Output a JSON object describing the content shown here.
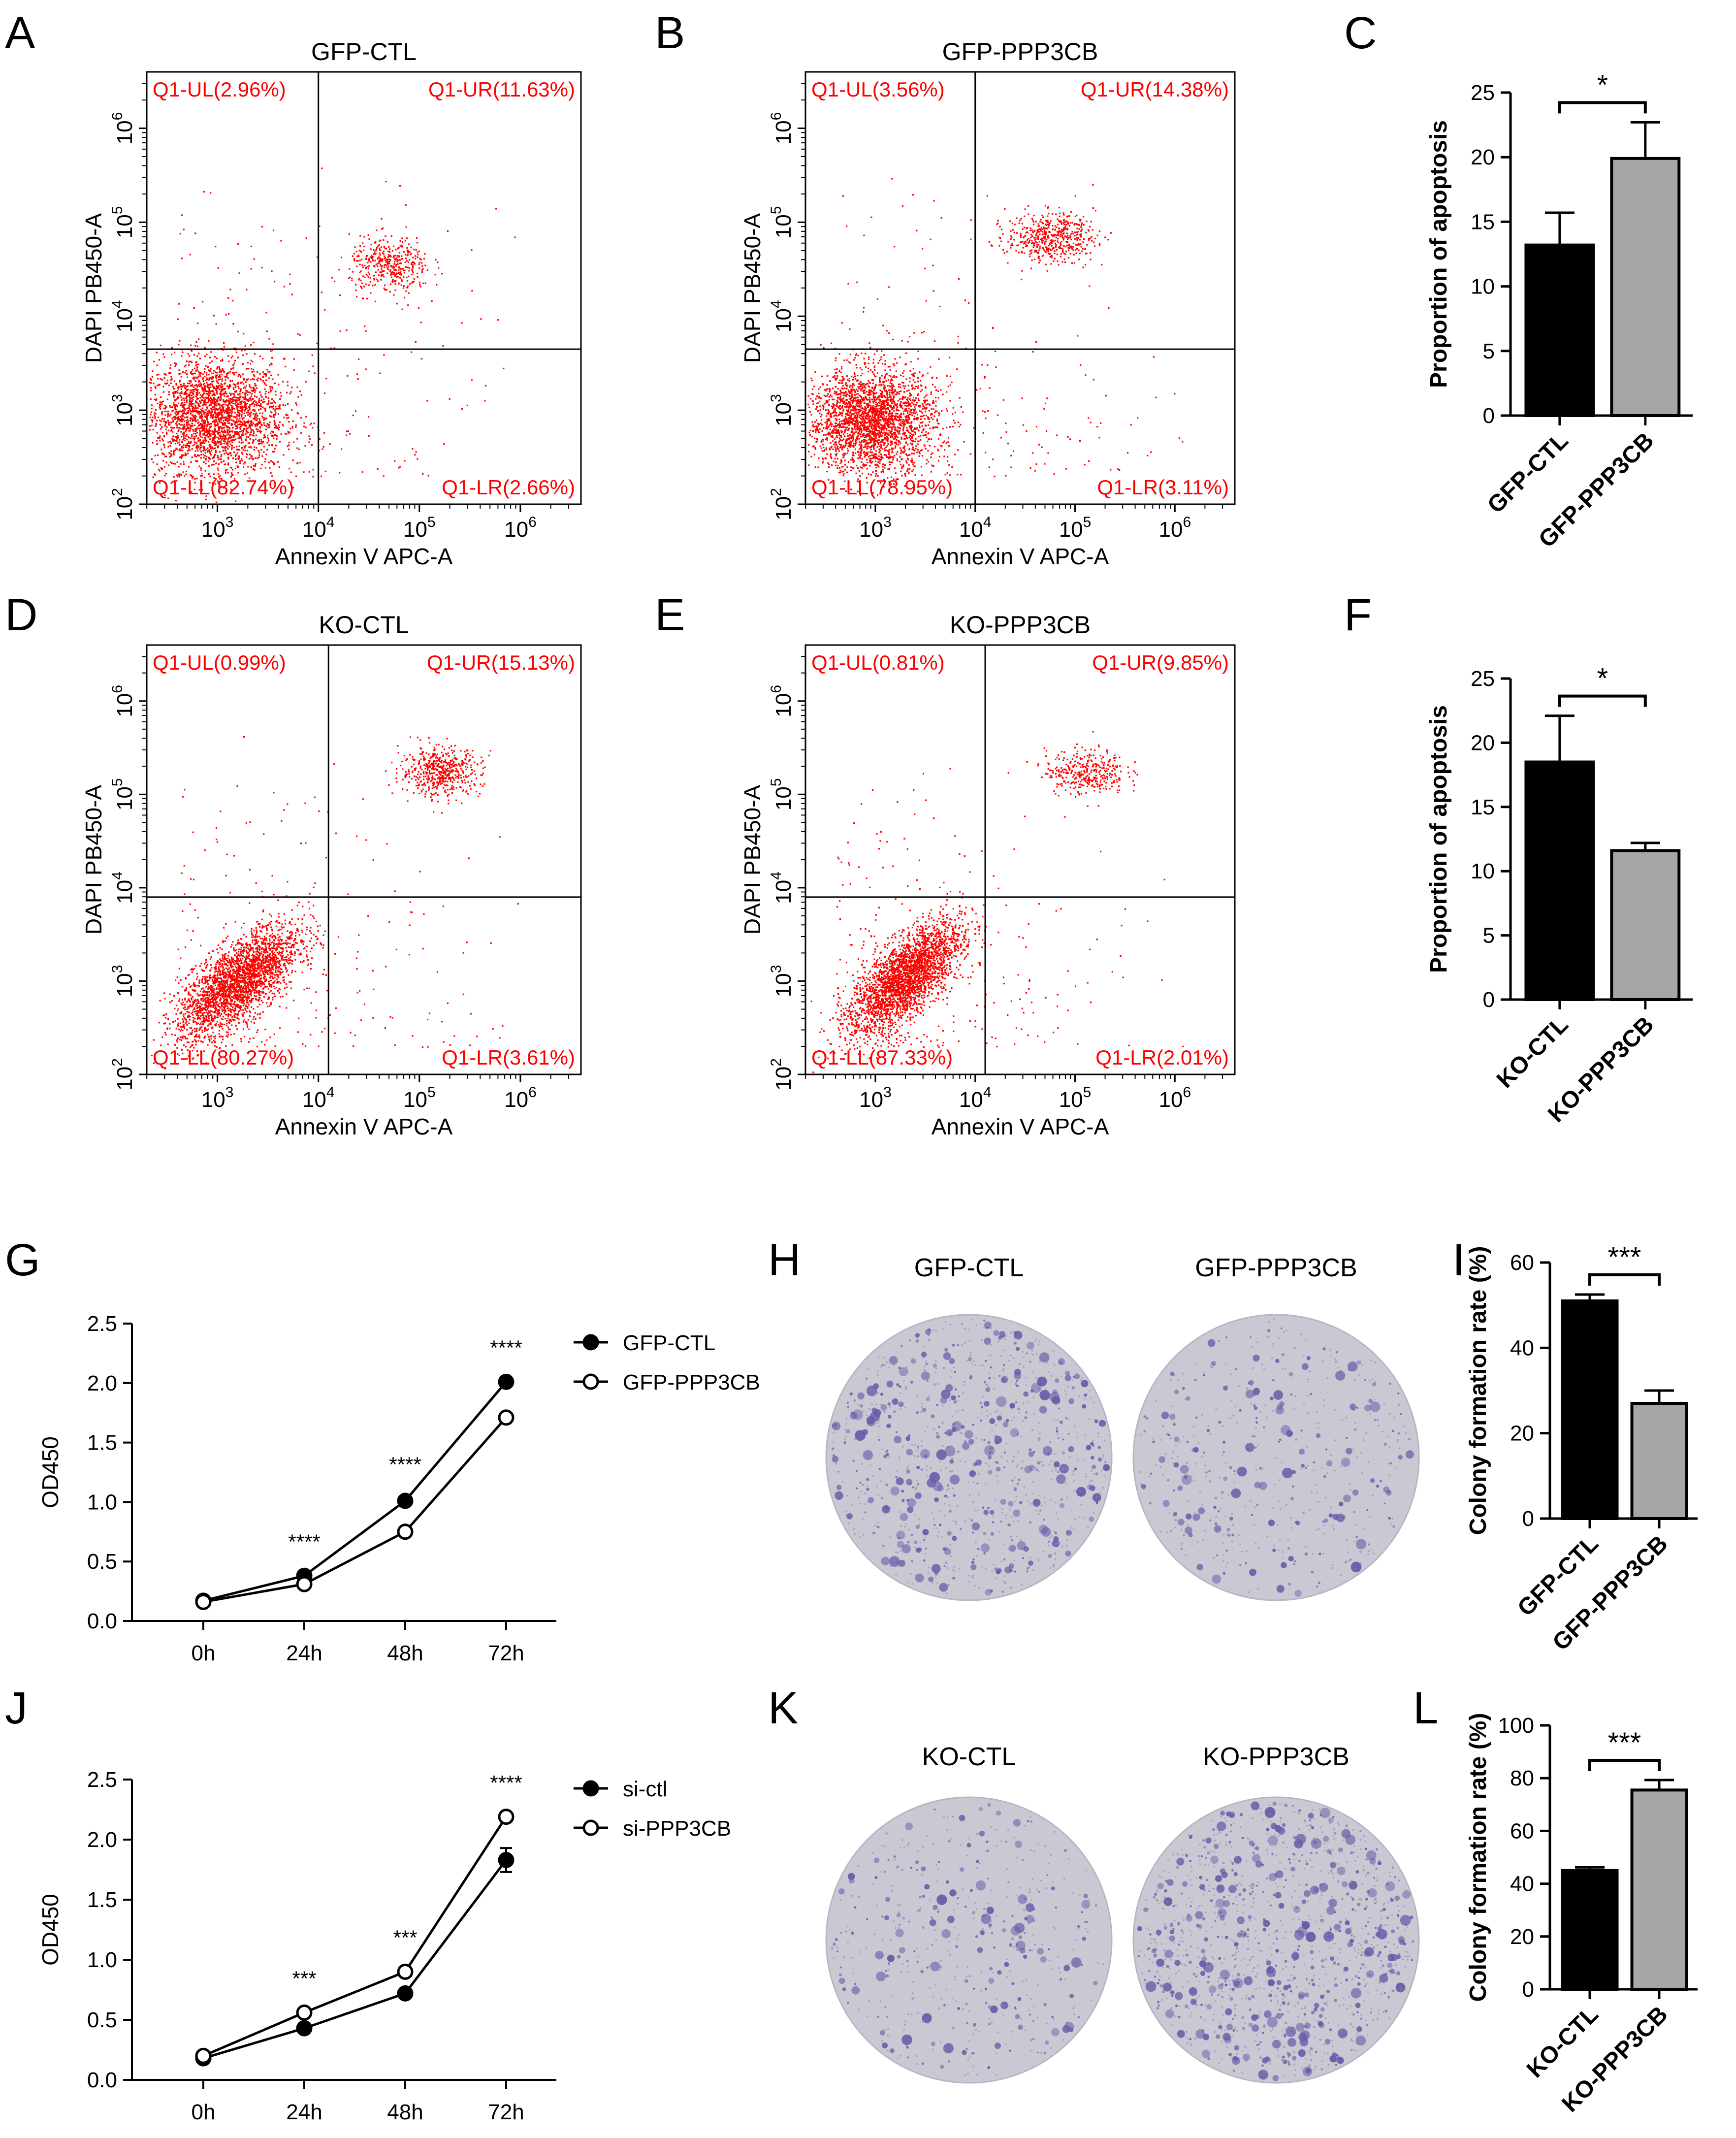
{
  "figure": {
    "panels": [
      "A",
      "B",
      "C",
      "D",
      "E",
      "F",
      "G",
      "H",
      "I",
      "J",
      "K",
      "L"
    ]
  },
  "flow_axes": {
    "xlabel": "Annexin V APC-A",
    "ylabel": "DAPI PB450-A",
    "ticks": [
      {
        "base": "10",
        "exp": "2"
      },
      {
        "base": "10",
        "exp": "3"
      },
      {
        "base": "10",
        "exp": "4"
      },
      {
        "base": "10",
        "exp": "5"
      },
      {
        "base": "10",
        "exp": "6"
      }
    ]
  },
  "colors": {
    "dots": "#ff0000",
    "quadrant_labels": "#ff0000",
    "bar_black": "#000000",
    "bar_gray": "#a6a6a6",
    "dish": "#c9c9d4",
    "colony": "#6b5aa8"
  },
  "chart_data": [
    {
      "panel": "A",
      "type": "scatter",
      "title": "GFP-CTL",
      "quadrants": {
        "UL": "Q1-UL(2.96%)",
        "UR": "Q1-UR(11.63%)",
        "LL": "Q1-LL(82.74%)",
        "LR": "Q1-LR(2.66%)"
      },
      "xlim_log10": [
        2.3,
        6.6
      ],
      "ylim_log10": [
        2.0,
        6.6
      ],
      "gate_log10": {
        "x": 4.0,
        "y": 3.65
      },
      "populations": [
        {
          "cx": 2.95,
          "cy": 2.95,
          "sx": 0.35,
          "sy": 0.3,
          "n": 2600
        },
        {
          "cx": 4.7,
          "cy": 4.55,
          "sx": 0.2,
          "sy": 0.15,
          "n": 420
        }
      ]
    },
    {
      "panel": "B",
      "type": "scatter",
      "title": "GFP-PPP3CB",
      "quadrants": {
        "UL": "Q1-UL(3.56%)",
        "UR": "Q1-UR(14.38%)",
        "LL": "Q1-LL(78.95%)",
        "LR": "Q1-LR(3.11%)"
      },
      "xlim_log10": [
        2.3,
        6.6
      ],
      "ylim_log10": [
        2.0,
        6.6
      ],
      "gate_log10": {
        "x": 4.0,
        "y": 3.65
      },
      "populations": [
        {
          "cx": 2.95,
          "cy": 2.9,
          "sx": 0.32,
          "sy": 0.27,
          "n": 2600
        },
        {
          "cx": 4.75,
          "cy": 4.85,
          "sx": 0.22,
          "sy": 0.13,
          "n": 520
        }
      ]
    },
    {
      "panel": "C",
      "type": "bar",
      "categories": [
        "GFP-CTL",
        "GFP-PPP3CB"
      ],
      "values": [
        13.2,
        19.9
      ],
      "errors": [
        2.5,
        2.8
      ],
      "ylabel": "Proportion of apoptosis",
      "ylim": [
        0,
        25
      ],
      "yticks": [
        0,
        5,
        10,
        15,
        20,
        25
      ],
      "significance": "*"
    },
    {
      "panel": "D",
      "type": "scatter",
      "title": "KO-CTL",
      "quadrants": {
        "UL": "Q1-UL(0.99%)",
        "UR": "Q1-UR(15.13%)",
        "LL": "Q1-LL(80.27%)",
        "LR": "Q1-LR(3.61%)"
      },
      "xlim_log10": [
        2.3,
        6.6
      ],
      "ylim_log10": [
        2.0,
        6.6
      ],
      "gate_log10": {
        "x": 4.1,
        "y": 3.9
      },
      "populations": [
        {
          "cx": 3.2,
          "cy": 3.0,
          "sx": 0.3,
          "sy": 0.3,
          "n": 2600,
          "corr": 0.7
        },
        {
          "cx": 5.2,
          "cy": 5.25,
          "sx": 0.2,
          "sy": 0.13,
          "n": 520
        }
      ]
    },
    {
      "panel": "E",
      "type": "scatter",
      "title": "KO-PPP3CB",
      "quadrants": {
        "UL": "Q1-UL(0.81%)",
        "UR": "Q1-UR(9.85%)",
        "LL": "Q1-LL(87.33%)",
        "LR": "Q1-LR(2.01%)"
      },
      "xlim_log10": [
        2.3,
        6.6
      ],
      "ylim_log10": [
        2.0,
        6.6
      ],
      "gate_log10": {
        "x": 4.1,
        "y": 3.9
      },
      "populations": [
        {
          "cx": 3.3,
          "cy": 3.05,
          "sx": 0.28,
          "sy": 0.3,
          "n": 2700,
          "corr": 0.7
        },
        {
          "cx": 5.1,
          "cy": 5.25,
          "sx": 0.2,
          "sy": 0.12,
          "n": 360
        }
      ]
    },
    {
      "panel": "F",
      "type": "bar",
      "categories": [
        "KO-CTL",
        "KO-PPP3CB"
      ],
      "values": [
        18.5,
        11.6
      ],
      "errors": [
        3.6,
        0.6
      ],
      "ylabel": "Proportion of apoptosis",
      "ylim": [
        0,
        25
      ],
      "yticks": [
        0,
        5,
        10,
        15,
        20,
        25
      ],
      "significance": "*"
    },
    {
      "panel": "G",
      "type": "line",
      "x": [
        "0h",
        "24h",
        "48h",
        "72h"
      ],
      "series": [
        {
          "name": "GFP-CTL",
          "values": [
            0.17,
            0.38,
            1.01,
            2.01
          ],
          "errors": [
            0.01,
            0.02,
            0.04,
            0.02
          ],
          "marker": "filled"
        },
        {
          "name": "GFP-PPP3CB",
          "values": [
            0.16,
            0.31,
            0.75,
            1.71
          ],
          "errors": [
            0.01,
            0.02,
            0.02,
            0.04
          ],
          "marker": "open"
        }
      ],
      "ylabel": "OD450",
      "ylim": [
        0,
        2.5
      ],
      "yticks": [
        "0.0",
        "0.5",
        "1.0",
        "1.5",
        "2.0",
        "2.5"
      ],
      "significance": [
        "",
        "****",
        "****",
        "****"
      ]
    },
    {
      "panel": "H",
      "type": "image",
      "dishes": [
        {
          "title": "GFP-CTL",
          "density": 420
        },
        {
          "title": "GFP-PPP3CB",
          "density": 230
        }
      ]
    },
    {
      "panel": "I",
      "type": "bar",
      "categories": [
        "GFP-CTL",
        "GFP-PPP3CB"
      ],
      "values": [
        51,
        27
      ],
      "errors": [
        1.5,
        3
      ],
      "ylabel": "Colony formation rate (%)",
      "ylim": [
        0,
        60
      ],
      "yticks": [
        0,
        20,
        40,
        60
      ],
      "significance": "***"
    },
    {
      "panel": "J",
      "type": "line",
      "x": [
        "0h",
        "24h",
        "48h",
        "72h"
      ],
      "series": [
        {
          "name": "si-ctl",
          "values": [
            0.18,
            0.43,
            0.72,
            1.83
          ],
          "errors": [
            0.01,
            0.02,
            0.02,
            0.1
          ],
          "marker": "filled"
        },
        {
          "name": "si-PPP3CB",
          "values": [
            0.2,
            0.56,
            0.9,
            2.19
          ],
          "errors": [
            0.01,
            0.02,
            0.02,
            0.02
          ],
          "marker": "open"
        }
      ],
      "ylabel": "OD450",
      "ylim": [
        0,
        2.5
      ],
      "yticks": [
        "0.0",
        "0.5",
        "1.0",
        "1.5",
        "2.0",
        "2.5"
      ],
      "significance": [
        "",
        "***",
        "***",
        "****"
      ]
    },
    {
      "panel": "K",
      "type": "image",
      "dishes": [
        {
          "title": "KO-CTL",
          "density": 220
        },
        {
          "title": "KO-PPP3CB",
          "density": 560
        }
      ]
    },
    {
      "panel": "L",
      "type": "bar",
      "categories": [
        "KO-CTL",
        "KO-PPP3CB"
      ],
      "values": [
        45,
        75.5
      ],
      "errors": [
        1.2,
        3.8
      ],
      "ylabel": "Colony formation rate (%)",
      "ylim": [
        0,
        100
      ],
      "yticks": [
        0,
        20,
        40,
        60,
        80,
        100
      ],
      "significance": "***"
    }
  ]
}
